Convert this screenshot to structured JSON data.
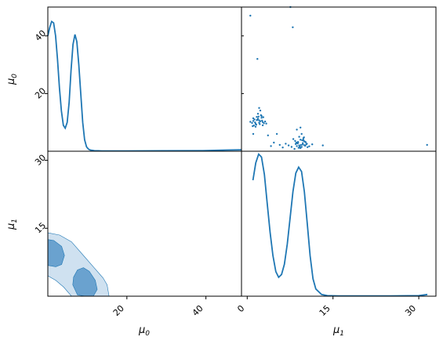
{
  "colors": {
    "line": "#1f77b4",
    "contour_outer": "#cfe1f0",
    "contour_inner": "#6aa2cf",
    "frame": "#000000",
    "background": "#ffffff"
  },
  "chart_data": [
    {
      "panel": "mu0-marginal",
      "type": "line",
      "xlim": [
        0,
        50
      ],
      "ylim": [
        0,
        50
      ],
      "yticks": [
        20,
        40
      ],
      "ylabel": "μ0",
      "y_label_parts": [
        "μ",
        "0"
      ],
      "x": [
        0,
        0.5,
        1,
        1.5,
        2,
        2.5,
        3,
        3.5,
        4,
        4.5,
        5,
        5.5,
        6,
        6.5,
        7,
        7.5,
        8,
        8.5,
        9,
        9.5,
        10,
        10.5,
        11,
        11.5,
        12,
        13,
        14,
        16,
        20,
        30,
        40,
        46,
        50
      ],
      "y": [
        40,
        43,
        45,
        44.5,
        40,
        32,
        22,
        14,
        9,
        8,
        10,
        17,
        28,
        37,
        40.5,
        38,
        30,
        20,
        10,
        4,
        1.5,
        0.7,
        0.4,
        0.3,
        0.2,
        0.15,
        0.1,
        0.1,
        0.1,
        0.15,
        0.2,
        0.4,
        0.5
      ]
    },
    {
      "panel": "mu1-vs-mu0-scatter",
      "type": "scatter",
      "xlim": [
        0,
        33
      ],
      "ylim": [
        0,
        50
      ],
      "clusters": [
        {
          "x": [
            1.5,
            1.8,
            2.0,
            2.2,
            2.4,
            2.6,
            2.8,
            3.0,
            3.2,
            3.4,
            3.6,
            3.8,
            2.1,
            2.5,
            2.9,
            3.3,
            3.7,
            1.9,
            2.3,
            2.7,
            3.1,
            3.5,
            4.0,
            4.2,
            2.0,
            2.4,
            2.8,
            3.2,
            3.6,
            2.6,
            3.0,
            3.4
          ],
          "y": [
            10.2,
            9.8,
            10.5,
            11.0,
            9.5,
            10.8,
            11.3,
            9.9,
            10.4,
            11.6,
            10.1,
            9.7,
            8.9,
            9.2,
            12.0,
            12.5,
            11.8,
            8.7,
            10.0,
            10.9,
            9.4,
            10.6,
            10.3,
            9.6,
            11.4,
            8.5,
            13.0,
            14.1,
            9.0,
            11.9,
            10.7,
            12.2
          ]
        },
        {
          "x": [
            9.2,
            9.4,
            9.6,
            9.8,
            10.0,
            10.2,
            10.4,
            10.6,
            10.8,
            11.0,
            9.3,
            9.7,
            10.1,
            10.5,
            10.9,
            9.5,
            9.9,
            10.3,
            10.7,
            11.2,
            9.1,
            9.6,
            10.0,
            10.4,
            10.8,
            9.8,
            10.2,
            10.6,
            11.1,
            9.4,
            10.0,
            10.5
          ],
          "y": [
            2.5,
            1.8,
            3.2,
            2.0,
            4.0,
            1.5,
            2.8,
            3.5,
            1.9,
            2.4,
            3.0,
            1.2,
            2.2,
            4.5,
            3.1,
            2.7,
            1.6,
            3.8,
            2.1,
            1.4,
            3.6,
            2.9,
            1.1,
            2.3,
            3.3,
            5.0,
            6.0,
            4.8,
            2.6,
            7.5,
            8.2,
            3.9
          ]
        },
        {
          "x": [
            8.0,
            8.5,
            7.5,
            9.0,
            6.5,
            6.0,
            5.5,
            11.5,
            12.0,
            13.8,
            4.5,
            5.0,
            7.0,
            8.8
          ],
          "y": [
            2.0,
            1.5,
            2.6,
            0.8,
            2.2,
            6.0,
            3.0,
            1.7,
            2.4,
            2.0,
            5.5,
            1.8,
            1.3,
            4.2
          ]
        },
        {
          "x": [
            1.5,
            2.7,
            8.7,
            8.3,
            31.5,
            3.0,
            2.0
          ],
          "y": [
            47,
            32,
            43,
            50,
            2.2,
            15,
            6.0
          ]
        }
      ]
    },
    {
      "panel": "mu1-vs-mu0-contour",
      "type": "area",
      "xlim": [
        0,
        49
      ],
      "ylim": [
        0,
        32
      ],
      "xticks": [
        20,
        40
      ],
      "yticks": [
        15,
        30
      ],
      "xlabel": "μ0",
      "ylabel": "μ1",
      "x_label_parts": [
        "μ",
        "0"
      ],
      "y_label_parts": [
        "μ",
        "1"
      ],
      "outer_region": {
        "x": [
          0,
          3,
          6,
          9,
          12,
          14,
          15,
          15.5,
          15,
          14,
          12,
          10,
          8,
          6,
          4,
          2,
          0
        ],
        "y": [
          14,
          13.5,
          12,
          9,
          6,
          4,
          2.5,
          0,
          0,
          0,
          0,
          0,
          0,
          0,
          2,
          3.5,
          4.5
        ]
      },
      "inner_regions": [
        {
          "x": [
            0,
            1.5,
            3.5,
            4.2,
            3.5,
            2,
            0
          ],
          "y": [
            12.5,
            12.3,
            11,
            9,
            7,
            6.5,
            6.8
          ]
        },
        {
          "x": [
            6.5,
            7.5,
            9,
            10.5,
            12,
            12.5,
            11.5,
            9.5,
            7.5,
            6.3
          ],
          "y": [
            4.2,
            5.8,
            6.3,
            5.5,
            3.5,
            1.5,
            0,
            0,
            0.3,
            2.5
          ]
        }
      ]
    },
    {
      "panel": "mu1-marginal",
      "type": "line",
      "xlim": [
        -1,
        33
      ],
      "ylim": [
        0,
        50
      ],
      "xticks": [
        0,
        15,
        30
      ],
      "xlabel": "μ1",
      "x_label_parts": [
        "μ",
        "1"
      ],
      "x": [
        1,
        1.5,
        2,
        2.5,
        3,
        3.5,
        4,
        4.5,
        5,
        5.5,
        6,
        6.5,
        7,
        7.5,
        8,
        8.5,
        9,
        9.5,
        10,
        10.5,
        11,
        11.5,
        12,
        13,
        14,
        16,
        20,
        25,
        30,
        31.5
      ],
      "y": [
        40,
        46,
        49,
        48,
        42,
        32,
        22,
        14,
        8.5,
        6.5,
        7.5,
        11,
        18,
        27,
        36,
        42.5,
        44.5,
        43,
        36,
        25,
        14,
        6,
        2.5,
        0.6,
        0.2,
        0.1,
        0.1,
        0.1,
        0.2,
        0.6
      ]
    }
  ]
}
